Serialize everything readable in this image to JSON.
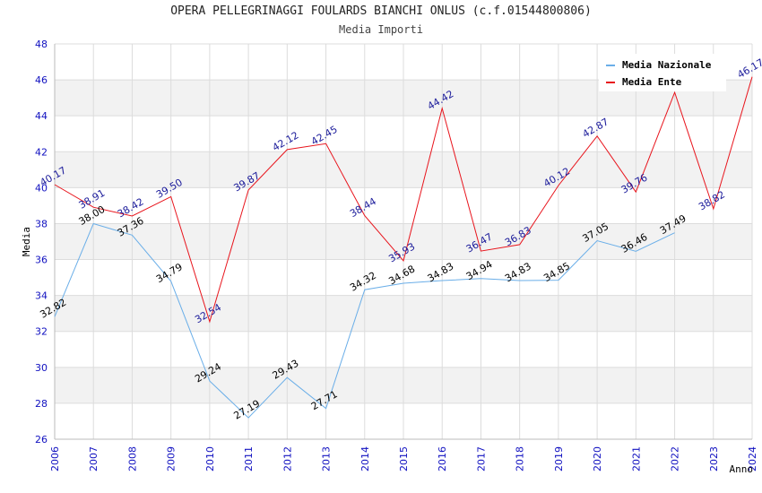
{
  "chart_data": {
    "type": "line",
    "title": "OPERA PELLEGRINAGGI FOULARDS BIANCHI ONLUS (c.f.01544800806)",
    "subtitle": "Media Importi",
    "xlabel": "Anno",
    "ylabel": "Media",
    "ylim": [
      26,
      48
    ],
    "yticks": [
      26,
      28,
      30,
      32,
      34,
      36,
      38,
      40,
      42,
      44,
      46,
      48
    ],
    "grid": true,
    "legend_position": "top-right",
    "categories": [
      "2006",
      "2007",
      "2008",
      "2009",
      "2010",
      "2011",
      "2012",
      "2013",
      "2014",
      "2015",
      "2016",
      "2017",
      "2018",
      "2019",
      "2020",
      "2021",
      "2022",
      "2023",
      "2024"
    ],
    "series": [
      {
        "name": "Media Nazionale",
        "color": "#6aaee8",
        "values": [
          32.82,
          38.0,
          37.36,
          34.79,
          29.24,
          27.19,
          29.43,
          27.71,
          34.32,
          34.68,
          34.83,
          34.94,
          34.83,
          34.85,
          37.05,
          36.46,
          37.49,
          null,
          null
        ],
        "labels": [
          "32.82",
          "38.00",
          "37.36",
          "34.79",
          "29.24",
          "27.19",
          "29.43",
          "27.71",
          "34.32",
          "34.68",
          "34.83",
          "34.94",
          "34.83",
          "34.85",
          "37.05",
          "36.46",
          "37.49",
          null,
          null
        ]
      },
      {
        "name": "Media Ente",
        "color": "#e8141c",
        "values": [
          40.17,
          38.91,
          38.42,
          39.5,
          32.54,
          39.87,
          42.12,
          42.45,
          38.44,
          35.93,
          44.42,
          36.47,
          36.83,
          40.12,
          42.87,
          39.76,
          45.3,
          38.82,
          46.17
        ],
        "labels": [
          "40.17",
          "38.91",
          "38.42",
          "39.50",
          "32.54",
          "39.87",
          "42.12",
          "42.45",
          "38.44",
          "35.93",
          "44.42",
          "36.47",
          "36.83",
          "40.12",
          "42.87",
          "39.76",
          null,
          "38.82",
          "46.17"
        ]
      }
    ]
  }
}
